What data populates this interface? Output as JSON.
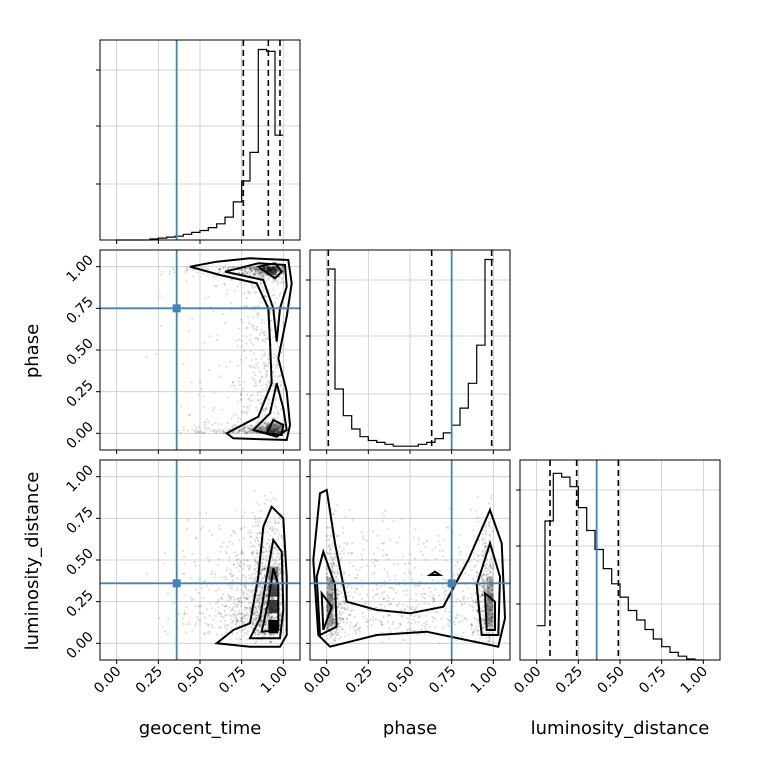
{
  "chart_data": {
    "type": "corner",
    "parameters": [
      "geocent_time",
      "phase",
      "luminosity_distance"
    ],
    "axis_range": [
      -0.1,
      1.1
    ],
    "ticks": [
      0.0,
      0.25,
      0.5,
      0.75,
      1.0
    ],
    "tick_labels": [
      "0.00",
      "0.25",
      "0.50",
      "0.75",
      "1.00"
    ],
    "grid": true,
    "truths": {
      "geocent_time": 0.36,
      "phase": 0.75,
      "luminosity_distance": 0.36
    },
    "truth_color": "#4682b4",
    "quantiles": {
      "geocent_time": [
        0.76,
        0.91,
        0.98
      ],
      "phase": [
        0.01,
        0.63,
        0.99
      ],
      "luminosity_distance": [
        0.08,
        0.24,
        0.49
      ]
    },
    "histograms": {
      "bin_edges": [
        0.0,
        0.05,
        0.1,
        0.15,
        0.2,
        0.25,
        0.3,
        0.35,
        0.4,
        0.45,
        0.5,
        0.55,
        0.6,
        0.65,
        0.7,
        0.75,
        0.8,
        0.85,
        0.9,
        0.95,
        1.0
      ],
      "geocent_time": [
        0,
        0,
        0,
        0,
        0.005,
        0.01,
        0.015,
        0.02,
        0.03,
        0.04,
        0.05,
        0.065,
        0.085,
        0.12,
        0.2,
        0.31,
        0.46,
        1.0,
        0.99,
        0.55
      ],
      "phase": [
        0.95,
        0.32,
        0.18,
        0.11,
        0.07,
        0.05,
        0.04,
        0.03,
        0.02,
        0.02,
        0.02,
        0.03,
        0.04,
        0.06,
        0.09,
        0.13,
        0.22,
        0.35,
        0.55,
        1.0
      ],
      "luminosity_distance": [
        0.18,
        0.73,
        0.98,
        0.96,
        0.91,
        0.8,
        0.68,
        0.58,
        0.48,
        0.4,
        0.33,
        0.26,
        0.21,
        0.16,
        0.11,
        0.07,
        0.04,
        0.02,
        0.005,
        0.0
      ]
    },
    "hist_ylim": [
      0,
      1.05
    ],
    "scatter_2d": {
      "phase_vs_geocent_time": {
        "x_mode": 0.96,
        "y_modes": [
          1.0,
          0.0
        ],
        "marginal_ridge_x": 0.96
      },
      "luminosity_distance_vs_geocent_time": {
        "x_mode": 0.94,
        "y_mode": 0.22
      },
      "luminosity_distance_vs_phase": {
        "x_modes": [
          0.0,
          1.0
        ],
        "y_mode": 0.2
      }
    }
  }
}
